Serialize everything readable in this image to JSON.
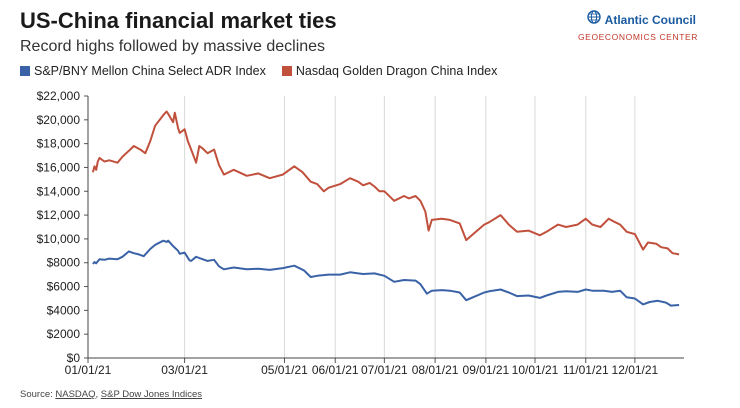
{
  "header": {
    "title": "US-China financial market ties",
    "subtitle": "Record highs followed by massive declines"
  },
  "brand": {
    "name": "Atlantic Council",
    "sub": "GEOECONOMICS CENTER",
    "icon": "globe-icon",
    "color": "#1a5aa0",
    "sub_color": "#c0392b"
  },
  "source": {
    "prefix": "Source: ",
    "link1": "NASDAQ",
    "separator": ", ",
    "link2": "S&P Dow Jones Indices"
  },
  "chart_data": {
    "type": "line",
    "title": "US-China financial market ties",
    "subtitle": "Record highs followed by massive declines",
    "xlabel": "",
    "ylabel": "",
    "ylim": [
      0,
      22000
    ],
    "y_ticks": [
      0,
      2000,
      4000,
      6000,
      8000,
      10000,
      12000,
      14000,
      16000,
      18000,
      20000,
      22000
    ],
    "y_tick_labels": [
      "$0",
      "$2000",
      "$4000",
      "$6000",
      "$8000",
      "$10,000",
      "$12,000",
      "$14,000",
      "$16,000",
      "$18,000",
      "$20,000",
      "$22,000"
    ],
    "x_range": [
      "2021-01-01",
      "2021-12-31"
    ],
    "x_ticks": [
      {
        "date": "2021-01-01",
        "label": "01/01/21"
      },
      {
        "date": "2021-03-01",
        "label": "03/01/21"
      },
      {
        "date": "2021-05-01",
        "label": "05/01/21"
      },
      {
        "date": "2021-06-01",
        "label": "06/01/21"
      },
      {
        "date": "2021-07-01",
        "label": "07/01/21"
      },
      {
        "date": "2021-08-01",
        "label": "08/01/21"
      },
      {
        "date": "2021-09-01",
        "label": "09/01/21"
      },
      {
        "date": "2021-10-01",
        "label": "10/01/21"
      },
      {
        "date": "2021-11-01",
        "label": "11/01/21"
      },
      {
        "date": "2021-12-01",
        "label": "12/01/21"
      }
    ],
    "grid": "vertical",
    "legend_position": "top-left",
    "series": [
      {
        "name": "S&P/BNY Mellon China Select ADR Index",
        "color": "#3a62a7",
        "points": [
          [
            "2021-01-04",
            7900
          ],
          [
            "2021-01-05",
            8050
          ],
          [
            "2021-01-06",
            7950
          ],
          [
            "2021-01-08",
            8300
          ],
          [
            "2021-01-11",
            8250
          ],
          [
            "2021-01-14",
            8350
          ],
          [
            "2021-01-19",
            8300
          ],
          [
            "2021-01-22",
            8500
          ],
          [
            "2021-01-26",
            8950
          ],
          [
            "2021-01-29",
            8800
          ],
          [
            "2021-02-01",
            8700
          ],
          [
            "2021-02-04",
            8550
          ],
          [
            "2021-02-08",
            9150
          ],
          [
            "2021-02-11",
            9500
          ],
          [
            "2021-02-16",
            9850
          ],
          [
            "2021-02-18",
            9750
          ],
          [
            "2021-02-19",
            9850
          ],
          [
            "2021-02-22",
            9400
          ],
          [
            "2021-02-25",
            9000
          ],
          [
            "2021-02-26",
            8750
          ],
          [
            "2021-03-01",
            8850
          ],
          [
            "2021-03-04",
            8200
          ],
          [
            "2021-03-05",
            8150
          ],
          [
            "2021-03-08",
            8500
          ],
          [
            "2021-03-10",
            8400
          ],
          [
            "2021-03-12",
            8300
          ],
          [
            "2021-03-15",
            8150
          ],
          [
            "2021-03-19",
            8250
          ],
          [
            "2021-03-22",
            7700
          ],
          [
            "2021-03-25",
            7450
          ],
          [
            "2021-03-31",
            7600
          ],
          [
            "2021-04-08",
            7450
          ],
          [
            "2021-04-15",
            7500
          ],
          [
            "2021-04-22",
            7400
          ],
          [
            "2021-04-30",
            7550
          ],
          [
            "2021-05-07",
            7750
          ],
          [
            "2021-05-13",
            7350
          ],
          [
            "2021-05-17",
            6800
          ],
          [
            "2021-05-21",
            6900
          ],
          [
            "2021-05-28",
            7000
          ],
          [
            "2021-06-04",
            7000
          ],
          [
            "2021-06-10",
            7200
          ],
          [
            "2021-06-15",
            7100
          ],
          [
            "2021-06-18",
            7050
          ],
          [
            "2021-06-25",
            7100
          ],
          [
            "2021-07-01",
            6900
          ],
          [
            "2021-07-07",
            6400
          ],
          [
            "2021-07-13",
            6550
          ],
          [
            "2021-07-20",
            6500
          ],
          [
            "2021-07-23",
            6200
          ],
          [
            "2021-07-27",
            5400
          ],
          [
            "2021-07-30",
            5650
          ],
          [
            "2021-08-05",
            5700
          ],
          [
            "2021-08-10",
            5650
          ],
          [
            "2021-08-16",
            5500
          ],
          [
            "2021-08-20",
            4850
          ],
          [
            "2021-08-25",
            5150
          ],
          [
            "2021-08-31",
            5500
          ],
          [
            "2021-09-03",
            5600
          ],
          [
            "2021-09-10",
            5750
          ],
          [
            "2021-09-15",
            5500
          ],
          [
            "2021-09-20",
            5200
          ],
          [
            "2021-09-27",
            5250
          ],
          [
            "2021-10-04",
            5050
          ],
          [
            "2021-10-08",
            5250
          ],
          [
            "2021-10-15",
            5550
          ],
          [
            "2021-10-20",
            5600
          ],
          [
            "2021-10-27",
            5550
          ],
          [
            "2021-11-01",
            5750
          ],
          [
            "2021-11-05",
            5650
          ],
          [
            "2021-11-12",
            5650
          ],
          [
            "2021-11-17",
            5550
          ],
          [
            "2021-11-22",
            5650
          ],
          [
            "2021-11-26",
            5100
          ],
          [
            "2021-12-01",
            5000
          ],
          [
            "2021-12-06",
            4500
          ],
          [
            "2021-12-10",
            4700
          ],
          [
            "2021-12-15",
            4800
          ],
          [
            "2021-12-20",
            4650
          ],
          [
            "2021-12-23",
            4400
          ],
          [
            "2021-12-28",
            4450
          ]
        ]
      },
      {
        "name": "Nasdaq Golden Dragon China Index",
        "color": "#c1503c",
        "points": [
          [
            "2021-01-04",
            15600
          ],
          [
            "2021-01-05",
            16100
          ],
          [
            "2021-01-06",
            15800
          ],
          [
            "2021-01-07",
            16500
          ],
          [
            "2021-01-08",
            16800
          ],
          [
            "2021-01-11",
            16500
          ],
          [
            "2021-01-14",
            16600
          ],
          [
            "2021-01-19",
            16400
          ],
          [
            "2021-01-22",
            16900
          ],
          [
            "2021-01-26",
            17400
          ],
          [
            "2021-01-29",
            17800
          ],
          [
            "2021-02-02",
            17500
          ],
          [
            "2021-02-05",
            17200
          ],
          [
            "2021-02-08",
            18200
          ],
          [
            "2021-02-11",
            19500
          ],
          [
            "2021-02-16",
            20400
          ],
          [
            "2021-02-18",
            20700
          ],
          [
            "2021-02-19",
            20500
          ],
          [
            "2021-02-22",
            19800
          ],
          [
            "2021-02-23",
            20600
          ],
          [
            "2021-02-25",
            19300
          ],
          [
            "2021-02-26",
            18900
          ],
          [
            "2021-03-01",
            19200
          ],
          [
            "2021-03-03",
            18200
          ],
          [
            "2021-03-05",
            17500
          ],
          [
            "2021-03-08",
            16400
          ],
          [
            "2021-03-10",
            17800
          ],
          [
            "2021-03-12",
            17600
          ],
          [
            "2021-03-15",
            17200
          ],
          [
            "2021-03-19",
            17500
          ],
          [
            "2021-03-22",
            16200
          ],
          [
            "2021-03-25",
            15400
          ],
          [
            "2021-03-31",
            15800
          ],
          [
            "2021-04-08",
            15300
          ],
          [
            "2021-04-15",
            15500
          ],
          [
            "2021-04-22",
            15100
          ],
          [
            "2021-04-30",
            15400
          ],
          [
            "2021-05-07",
            16100
          ],
          [
            "2021-05-12",
            15600
          ],
          [
            "2021-05-17",
            14800
          ],
          [
            "2021-05-21",
            14600
          ],
          [
            "2021-05-25",
            14000
          ],
          [
            "2021-05-28",
            14300
          ],
          [
            "2021-06-04",
            14600
          ],
          [
            "2021-06-10",
            15100
          ],
          [
            "2021-06-15",
            14800
          ],
          [
            "2021-06-18",
            14500
          ],
          [
            "2021-06-22",
            14700
          ],
          [
            "2021-06-25",
            14400
          ],
          [
            "2021-06-28",
            14000
          ],
          [
            "2021-07-01",
            14000
          ],
          [
            "2021-07-07",
            13200
          ],
          [
            "2021-07-13",
            13600
          ],
          [
            "2021-07-16",
            13400
          ],
          [
            "2021-07-20",
            13600
          ],
          [
            "2021-07-23",
            13200
          ],
          [
            "2021-07-26",
            12300
          ],
          [
            "2021-07-28",
            10700
          ],
          [
            "2021-07-30",
            11600
          ],
          [
            "2021-08-05",
            11700
          ],
          [
            "2021-08-10",
            11600
          ],
          [
            "2021-08-16",
            11300
          ],
          [
            "2021-08-20",
            9900
          ],
          [
            "2021-08-25",
            10500
          ],
          [
            "2021-08-31",
            11200
          ],
          [
            "2021-09-03",
            11400
          ],
          [
            "2021-09-10",
            12000
          ],
          [
            "2021-09-15",
            11200
          ],
          [
            "2021-09-20",
            10600
          ],
          [
            "2021-09-27",
            10700
          ],
          [
            "2021-10-04",
            10300
          ],
          [
            "2021-10-08",
            10600
          ],
          [
            "2021-10-15",
            11200
          ],
          [
            "2021-10-20",
            11000
          ],
          [
            "2021-10-27",
            11200
          ],
          [
            "2021-11-01",
            11700
          ],
          [
            "2021-11-05",
            11200
          ],
          [
            "2021-11-10",
            11000
          ],
          [
            "2021-11-15",
            11700
          ],
          [
            "2021-11-19",
            11400
          ],
          [
            "2021-11-22",
            11200
          ],
          [
            "2021-11-26",
            10600
          ],
          [
            "2021-12-01",
            10400
          ],
          [
            "2021-12-06",
            9100
          ],
          [
            "2021-12-09",
            9700
          ],
          [
            "2021-12-14",
            9600
          ],
          [
            "2021-12-17",
            9300
          ],
          [
            "2021-12-21",
            9200
          ],
          [
            "2021-12-24",
            8800
          ],
          [
            "2021-12-28",
            8700
          ]
        ]
      }
    ]
  }
}
